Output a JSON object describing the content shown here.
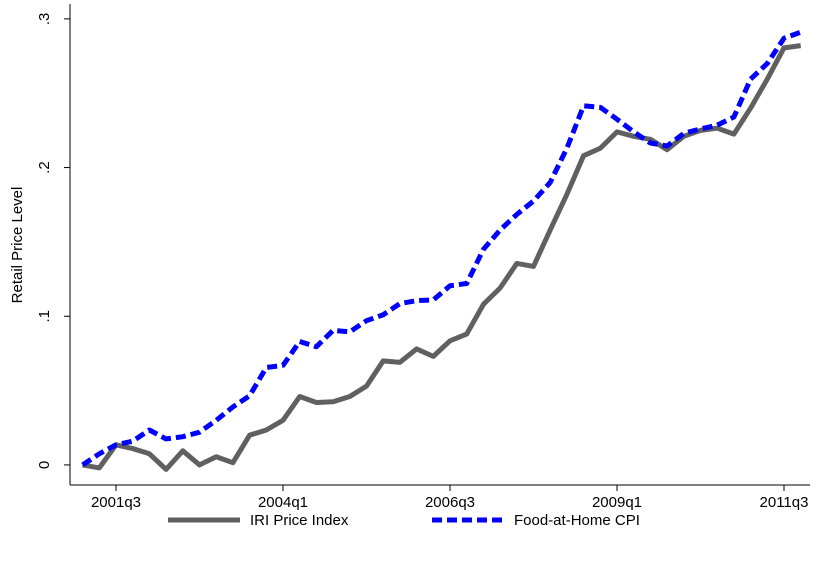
{
  "chart_data": {
    "type": "line",
    "y_label": "Retail Price Level",
    "categories": [
      null,
      null,
      "2001q3",
      null,
      null,
      null,
      null,
      null,
      null,
      null,
      null,
      null,
      "2004q1",
      null,
      null,
      null,
      null,
      null,
      null,
      null,
      null,
      null,
      "2006q3",
      null,
      null,
      null,
      null,
      null,
      null,
      null,
      null,
      null,
      "2009q1",
      null,
      null,
      null,
      null,
      null,
      null,
      null,
      null,
      null,
      "2011q3",
      null
    ],
    "series": [
      {
        "name": "IRI Price Index",
        "color": "#606060",
        "dash": false,
        "values": [
          0,
          -0.002,
          0.0135,
          0.011,
          0.0075,
          -0.003,
          0.0095,
          0.0,
          0.0055,
          0.0015,
          0.02,
          0.0235,
          0.03,
          0.046,
          0.042,
          0.0425,
          0.046,
          0.053,
          0.07,
          0.069,
          0.078,
          0.073,
          0.0835,
          0.088,
          0.108,
          0.119,
          0.1355,
          0.1335,
          0.158,
          0.182,
          0.208,
          0.213,
          0.224,
          0.221,
          0.219,
          0.212,
          0.221,
          0.225,
          0.2265,
          0.2225,
          0.24,
          0.2595,
          0.2805,
          0.282
        ]
      },
      {
        "name": "Food-at-Home CPI",
        "color": "#0000ff",
        "dash": true,
        "values": [
          0,
          0.0075,
          0.0135,
          0.016,
          0.0235,
          0.0175,
          0.019,
          0.022,
          0.03,
          0.039,
          0.0465,
          0.0655,
          0.067,
          0.083,
          0.0795,
          0.0905,
          0.0895,
          0.097,
          0.101,
          0.1085,
          0.1105,
          0.111,
          0.1205,
          0.122,
          0.145,
          0.158,
          0.1685,
          0.1775,
          0.19,
          0.213,
          0.2415,
          0.2405,
          0.2325,
          0.224,
          0.2165,
          0.2145,
          0.223,
          0.226,
          0.2285,
          0.234,
          0.2595,
          0.27,
          0.287,
          0.291
        ]
      }
    ],
    "ylim": [
      -0.0135,
      0.31
    ],
    "yticks": [
      0,
      {
        "value": 0.1,
        "label": ".1"
      },
      {
        "value": 0.2,
        "label": ".2"
      },
      {
        "value": 0.3,
        "label": ".3"
      }
    ],
    "grid": false
  }
}
